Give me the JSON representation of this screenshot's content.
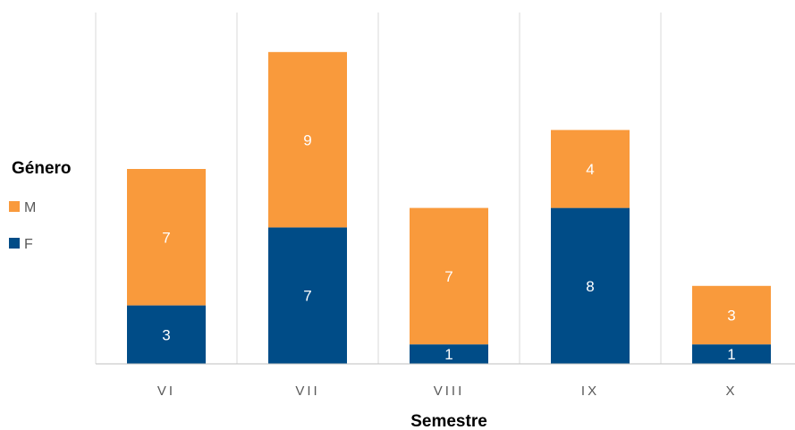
{
  "chart_data": {
    "type": "bar",
    "stacked": true,
    "categories": [
      "VI",
      "VII",
      "VIII",
      "IX",
      "X"
    ],
    "series": [
      {
        "name": "F",
        "values": [
          3,
          7,
          1,
          8,
          1
        ],
        "color": "#004C87"
      },
      {
        "name": "M",
        "values": [
          7,
          9,
          7,
          4,
          3
        ],
        "color": "#F99A3C"
      }
    ],
    "xlabel": "Semestre",
    "ylabel": "",
    "ylim": [
      0,
      16
    ],
    "grid": "vertical-separators",
    "legend": {
      "title": "Género",
      "placement": "left",
      "entries": [
        "M",
        "F"
      ]
    },
    "colors": {
      "gridline": "#d9d9d9",
      "axis": "#bfbfbf",
      "label": "#ffffff",
      "tick": "#595959"
    }
  }
}
